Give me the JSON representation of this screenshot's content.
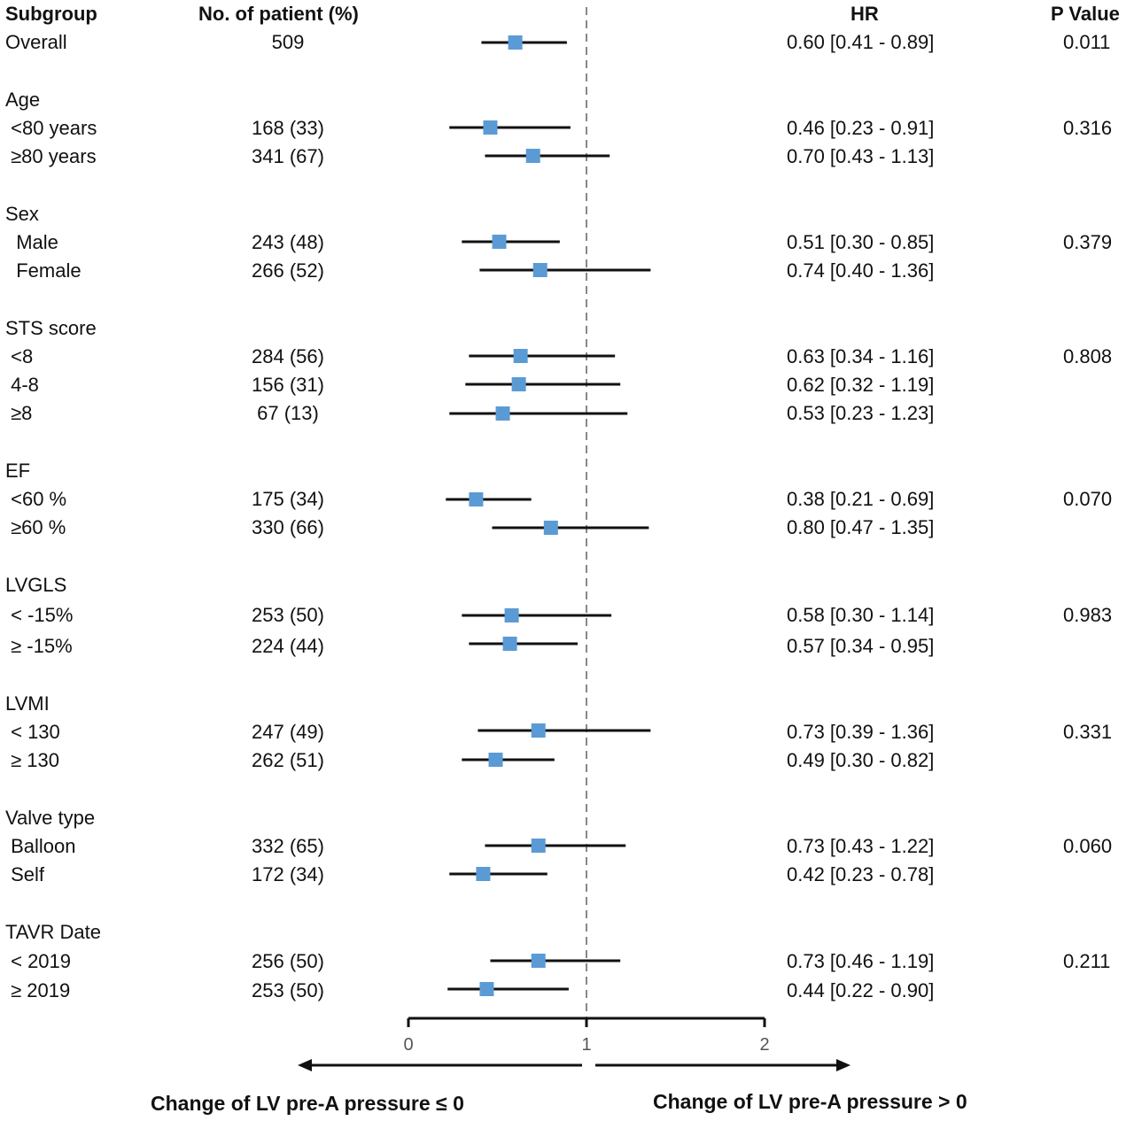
{
  "headers": {
    "subgroup": "Subgroup",
    "patients": "No. of patient (%)",
    "hr": "HR",
    "pvalue": "P Value"
  },
  "rows": [
    {
      "label": "Overall",
      "n": "509",
      "hr_text": "0.60 [0.41 - 0.89]",
      "p": "0.011",
      "is_group": false
    },
    {
      "label": "Age",
      "n": "",
      "hr_text": "",
      "p": "",
      "is_group": true
    },
    {
      "label": " <80 years",
      "n": "168 (33)",
      "hr_text": "0.46 [0.23 - 0.91]",
      "p": "0.316",
      "is_group": false
    },
    {
      "label": " ≥80 years",
      "n": "341 (67)",
      "hr_text": "0.70 [0.43 - 1.13]",
      "p": "",
      "is_group": false
    },
    {
      "label": "Sex",
      "n": "",
      "hr_text": "",
      "p": "",
      "is_group": true
    },
    {
      "label": "  Male",
      "n": "243 (48)",
      "hr_text": "0.51 [0.30 - 0.85]",
      "p": "0.379",
      "is_group": false
    },
    {
      "label": "  Female",
      "n": "266 (52)",
      "hr_text": "0.74 [0.40 - 1.36]",
      "p": "",
      "is_group": false
    },
    {
      "label": "STS score",
      "n": "",
      "hr_text": "",
      "p": "",
      "is_group": true
    },
    {
      "label": " <8",
      "n": "284 (56)",
      "hr_text": "0.63 [0.34 - 1.16]",
      "p": "0.808",
      "is_group": false
    },
    {
      "label": " 4-8",
      "n": "156 (31)",
      "hr_text": "0.62 [0.32 - 1.19]",
      "p": "",
      "is_group": false
    },
    {
      "label": " ≥8",
      "n": "67 (13)",
      "hr_text": "0.53 [0.23 - 1.23]",
      "p": "",
      "is_group": false
    },
    {
      "label": "EF",
      "n": "",
      "hr_text": "",
      "p": "",
      "is_group": true
    },
    {
      "label": " <60 %",
      "n": "175 (34)",
      "hr_text": "0.38 [0.21 - 0.69]",
      "p": "0.070",
      "is_group": false
    },
    {
      "label": " ≥60 %",
      "n": "330 (66)",
      "hr_text": "0.80 [0.47 - 1.35]",
      "p": "",
      "is_group": false
    },
    {
      "label": "LVGLS",
      "n": "",
      "hr_text": "",
      "p": "",
      "is_group": true
    },
    {
      "label": " < -15%",
      "n": "253 (50)",
      "hr_text": "0.58 [0.30 - 1.14]",
      "p": "0.983",
      "is_group": false
    },
    {
      "label": " ≥ -15%",
      "n": "224 (44)",
      "hr_text": "0.57 [0.34 - 0.95]",
      "p": "",
      "is_group": false
    },
    {
      "label": "LVMI",
      "n": "",
      "hr_text": "",
      "p": "",
      "is_group": true
    },
    {
      "label": " < 130",
      "n": "247 (49)",
      "hr_text": "0.73 [0.39 - 1.36]",
      "p": "0.331",
      "is_group": false
    },
    {
      "label": " ≥ 130",
      "n": "262 (51)",
      "hr_text": "0.49 [0.30 - 0.82]",
      "p": "",
      "is_group": false
    },
    {
      "label": "Valve type",
      "n": "",
      "hr_text": "",
      "p": "",
      "is_group": true
    },
    {
      "label": " Balloon",
      "n": "332 (65)",
      "hr_text": "0.73 [0.43 - 1.22]",
      "p": "0.060",
      "is_group": false
    },
    {
      "label": " Self",
      "n": "172 (34)",
      "hr_text": "0.42 [0.23 - 0.78]",
      "p": "",
      "is_group": false
    },
    {
      "label": "TAVR Date",
      "n": "",
      "hr_text": "",
      "p": "",
      "is_group": true
    },
    {
      "label": " < 2019",
      "n": "256 (50)",
      "hr_text": "0.73 [0.46 - 1.19]",
      "p": "0.211",
      "is_group": false
    },
    {
      "label": " ≥ 2019",
      "n": "253 (50)",
      "hr_text": "0.44 [0.22 - 0.90]",
      "p": "",
      "is_group": false
    }
  ],
  "directions": {
    "left": "Change of LV pre-A pressure ≤ 0",
    "right": "Change of LV pre-A pressure > 0"
  },
  "colors": {
    "marker": "#5b9bd5",
    "ci_line": "#111111",
    "reference_line": "#888888"
  },
  "chart_data": {
    "type": "forest",
    "xlim": [
      0,
      2
    ],
    "x_ticks": [
      "0",
      "1",
      "2"
    ],
    "reference_value": 1,
    "series": [
      {
        "label": "Overall",
        "hr": 0.6,
        "lo": 0.41,
        "hi": 0.89
      },
      {
        "label": "<80 years",
        "hr": 0.46,
        "lo": 0.23,
        "hi": 0.91
      },
      {
        "label": "≥80 years",
        "hr": 0.7,
        "lo": 0.43,
        "hi": 1.13
      },
      {
        "label": "Male",
        "hr": 0.51,
        "lo": 0.3,
        "hi": 0.85
      },
      {
        "label": "Female",
        "hr": 0.74,
        "lo": 0.4,
        "hi": 1.36
      },
      {
        "label": "STS <8",
        "hr": 0.63,
        "lo": 0.34,
        "hi": 1.16
      },
      {
        "label": "STS 4-8",
        "hr": 0.62,
        "lo": 0.32,
        "hi": 1.19
      },
      {
        "label": "STS ≥8",
        "hr": 0.53,
        "lo": 0.23,
        "hi": 1.23
      },
      {
        "label": "EF <60 %",
        "hr": 0.38,
        "lo": 0.21,
        "hi": 0.69
      },
      {
        "label": "EF ≥60 %",
        "hr": 0.8,
        "lo": 0.47,
        "hi": 1.35
      },
      {
        "label": "LVGLS < -15%",
        "hr": 0.58,
        "lo": 0.3,
        "hi": 1.14
      },
      {
        "label": "LVGLS ≥ -15%",
        "hr": 0.57,
        "lo": 0.34,
        "hi": 0.95
      },
      {
        "label": "LVMI < 130",
        "hr": 0.73,
        "lo": 0.39,
        "hi": 1.36
      },
      {
        "label": "LVMI ≥ 130",
        "hr": 0.49,
        "lo": 0.3,
        "hi": 0.82
      },
      {
        "label": "Balloon",
        "hr": 0.73,
        "lo": 0.43,
        "hi": 1.22
      },
      {
        "label": "Self",
        "hr": 0.42,
        "lo": 0.23,
        "hi": 0.78
      },
      {
        "label": "TAVR < 2019",
        "hr": 0.73,
        "lo": 0.46,
        "hi": 1.19
      },
      {
        "label": "TAVR ≥ 2019",
        "hr": 0.44,
        "lo": 0.22,
        "hi": 0.9
      }
    ]
  }
}
